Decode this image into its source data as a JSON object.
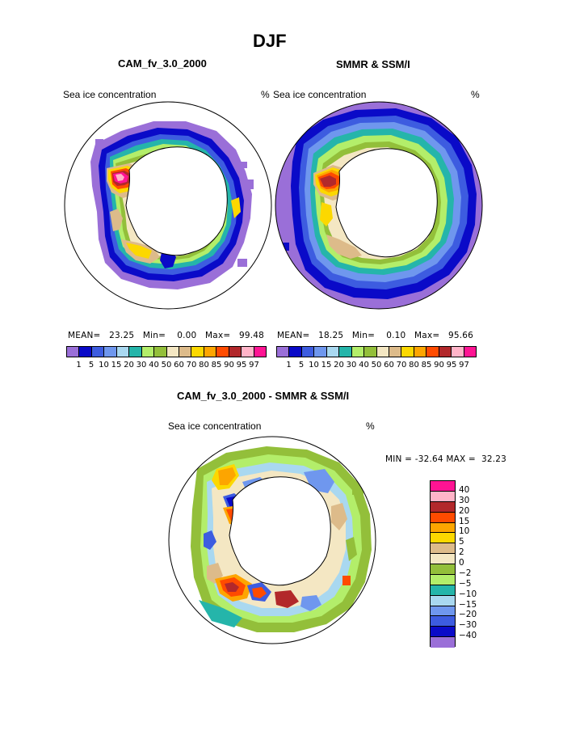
{
  "title": "DJF",
  "panels": {
    "left": {
      "title": "CAM_fv_3.0_2000",
      "field": "Sea ice concentration",
      "units": "%",
      "stats": {
        "mean_label": "MEAN=",
        "mean": "23.25",
        "min_label": "Min=",
        "min": "0.00",
        "max_label": "Max=",
        "max": "99.48"
      }
    },
    "right": {
      "title": "SMMR & SSM/I",
      "field": "Sea ice concentration",
      "units": "%",
      "stats": {
        "mean_label": "MEAN=",
        "mean": "18.25",
        "min_label": "Min=",
        "min": "0.10",
        "max_label": "Max=",
        "max": "95.66"
      }
    },
    "diff": {
      "title": "CAM_fv_3.0_2000 - SMMR & SSM/I",
      "field": "Sea ice concentration",
      "units": "%",
      "stats": {
        "min_label": "MIN =",
        "min": "-32.64",
        "max_label": "MAX =",
        "max": "32.23"
      }
    }
  },
  "chart_data": [
    {
      "type": "heatmap",
      "title": "CAM_fv_3.0_2000",
      "projection": "south-polar-stereographic",
      "variable": "Sea ice concentration",
      "units": "%",
      "levels": [
        "1",
        "5",
        "10",
        "15",
        "20",
        "30",
        "40",
        "50",
        "60",
        "70",
        "80",
        "85",
        "90",
        "95",
        "97"
      ],
      "colors": [
        "#9A6FD8",
        "#0A0AC8",
        "#3D5CE0",
        "#6F97EE",
        "#A9D8F0",
        "#25B5AA",
        "#B3EE6A",
        "#93BF3A",
        "#F4E7C3",
        "#DDBB8A",
        "#FCD800",
        "#FDA500",
        "#FF4B00",
        "#B2282B",
        "#FFB4C8",
        "#FF1493"
      ],
      "mean": 23.25,
      "min": 0.0,
      "max": 99.48
    },
    {
      "type": "heatmap",
      "title": "SMMR & SSM/I",
      "projection": "south-polar-stereographic",
      "variable": "Sea ice concentration",
      "units": "%",
      "levels": [
        "1",
        "5",
        "10",
        "15",
        "20",
        "30",
        "40",
        "50",
        "60",
        "70",
        "80",
        "85",
        "90",
        "95",
        "97"
      ],
      "mean": 18.25,
      "min": 0.1,
      "max": 95.66
    },
    {
      "type": "heatmap",
      "title": "CAM_fv_3.0_2000 - SMMR & SSM/I",
      "projection": "south-polar-stereographic",
      "variable": "Sea ice concentration",
      "units": "%",
      "levels": [
        "40",
        "30",
        "20",
        "15",
        "10",
        "5",
        "2",
        "0",
        "−2",
        "−5",
        "−10",
        "−15",
        "−20",
        "−30",
        "−40"
      ],
      "colors_top_to_bottom": [
        "#FF1493",
        "#FFB4C8",
        "#B2282B",
        "#FF4B00",
        "#FDA500",
        "#FCD800",
        "#DDBB8A",
        "#F4E7C3",
        "#93BF3A",
        "#B3EE6A",
        "#25B5AA",
        "#A9D8F0",
        "#6F97EE",
        "#3D5CE0",
        "#0A0AC8",
        "#9A6FD8"
      ],
      "min": -32.64,
      "max": 32.23
    }
  ]
}
